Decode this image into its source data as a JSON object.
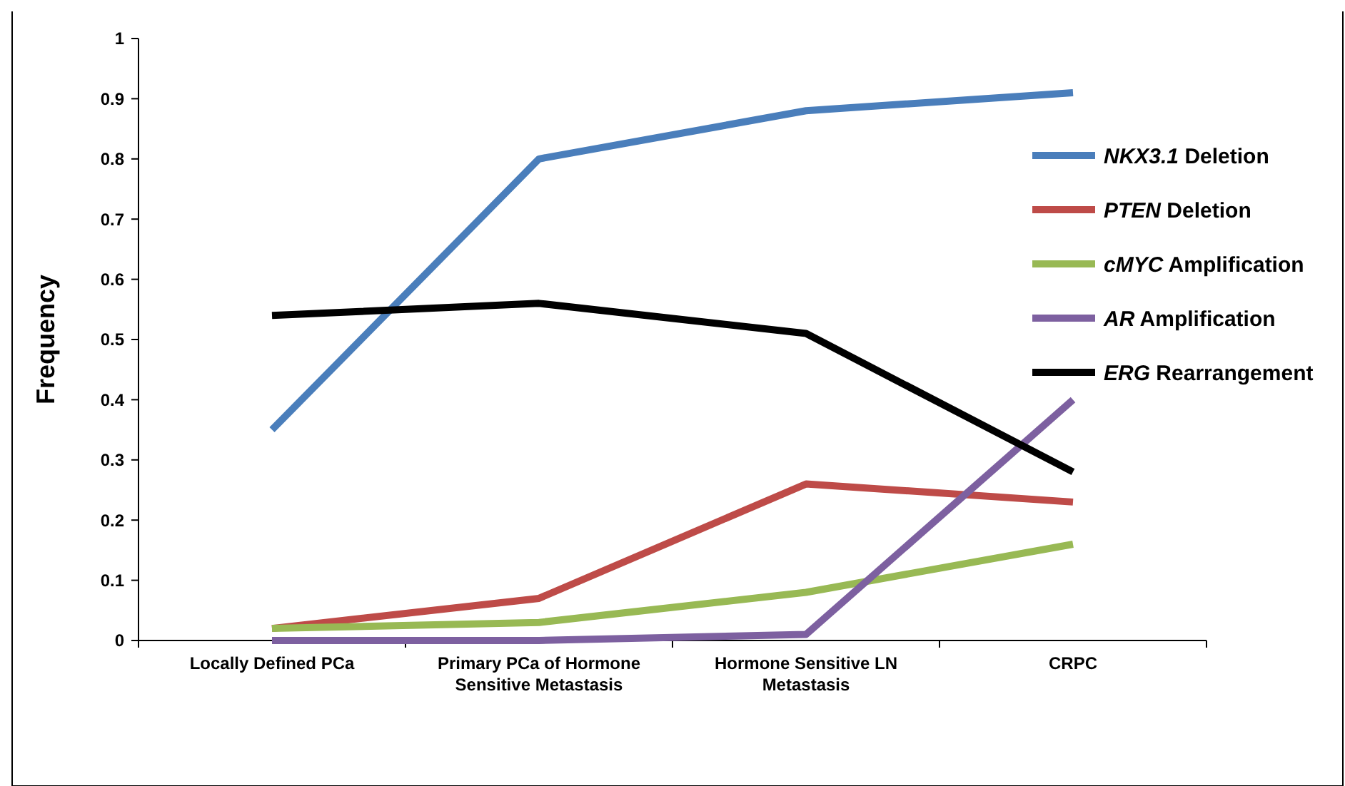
{
  "chart_data": {
    "type": "line",
    "ylabel": "Frequency",
    "categories": [
      "Locally Defined PCa",
      "Primary PCa of Hormone Sensitive Metastasis",
      "Hormone Sensitive LN Metastasis",
      "CRPC"
    ],
    "series": [
      {
        "name": "NKX3.1 Deletion",
        "color": "#4a7ebb",
        "values": [
          0.35,
          0.8,
          0.88,
          0.91
        ]
      },
      {
        "name": "PTEN Deletion",
        "color": "#be4b48",
        "values": [
          0.02,
          0.07,
          0.26,
          0.23
        ]
      },
      {
        "name": "cMYC Amplification",
        "color": "#98b954",
        "values": [
          0.02,
          0.03,
          0.08,
          0.16
        ]
      },
      {
        "name": "AR Amplification",
        "color": "#7d60a0",
        "values": [
          0,
          0,
          0.01,
          0.4
        ]
      },
      {
        "name": "ERG Rearrangement",
        "color": "#000000",
        "values": [
          0.54,
          0.56,
          0.51,
          0.28
        ]
      }
    ],
    "ylim": [
      0,
      1
    ],
    "yticks": [
      0,
      0.1,
      0.2,
      0.3,
      0.4,
      0.5,
      0.6,
      0.7,
      0.8,
      0.9,
      1
    ],
    "grid": false,
    "legend": "right",
    "marker": "none",
    "line_style": "solid"
  }
}
